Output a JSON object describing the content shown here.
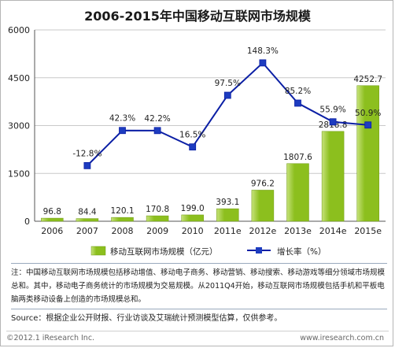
{
  "chart_data": {
    "type": "bar",
    "title": "2006-2015年中国移动互联网市场规模",
    "categories": [
      "2006",
      "2007",
      "2008",
      "2009",
      "2010",
      "2011e",
      "2012e",
      "2013e",
      "2014e",
      "2015e"
    ],
    "series": [
      {
        "name": "移动互联网市场规模（亿元）",
        "type": "bar",
        "axis": "left",
        "values": [
          96.8,
          84.4,
          120.1,
          170.8,
          199.0,
          393.1,
          976.2,
          1807.6,
          2818.8,
          4252.7
        ],
        "labels": [
          "96.8",
          "84.4",
          "120.1",
          "170.8",
          "199.0",
          "393.1",
          "976.2",
          "1807.6",
          "2818.8",
          "4252.7"
        ]
      },
      {
        "name": "增长率（%）",
        "type": "line",
        "axis": "right",
        "values": [
          null,
          -12.8,
          42.3,
          42.2,
          16.5,
          97.5,
          148.3,
          85.2,
          55.9,
          50.9
        ],
        "labels": [
          "",
          "-12.8%",
          "42.3%",
          "42.2%",
          "16.5%",
          "97.5%",
          "148.3%",
          "85.2%",
          "55.9%",
          "50.9%"
        ]
      }
    ],
    "yticks": [
      "0",
      "1500",
      "3000",
      "4500",
      "6000"
    ],
    "ylim": [
      0,
      6000
    ],
    "y2lim": [
      -100,
      200
    ],
    "legend_position": "bottom",
    "colors": {
      "bar": "#8cbf1e",
      "bar_light": "#c6e27a",
      "line": "#0b1fa5",
      "marker": "#1d3cc0",
      "grid": "#c9c9c9",
      "axis": "#555555"
    }
  },
  "notes": {
    "text": "注：中国移动互联网市场规模包括移动增值、移动电子商务、移动营销、移动搜索、移动游戏等细分领域市场规模总和。其中，移动电子商务统计的市场规模为交易规模。从2011Q4开始，移动互联网市场规模包括手机和平板电脑两类移动设备上创造的市场规模总和。"
  },
  "source": {
    "text": "Source：根据企业公开财报、行业访谈及艾瑞统计预测模型估算，仅供参考。"
  },
  "footer": {
    "left": "©2012.1 iResearch Inc.",
    "right": "www.iresearch.com.cn"
  }
}
